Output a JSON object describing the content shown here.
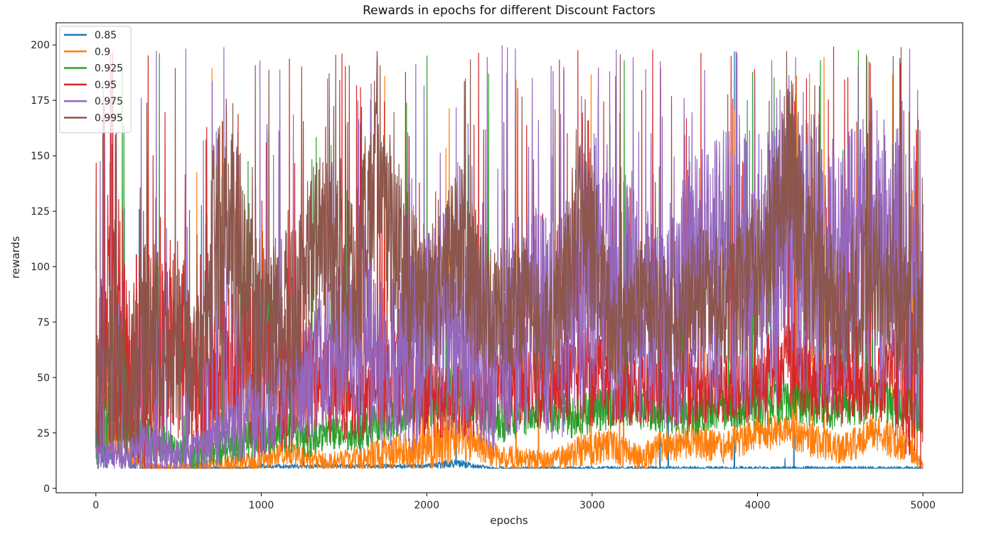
{
  "chart_data": {
    "type": "line",
    "title": "Rewards in epochs for different Discount Factors",
    "xlabel": "epochs",
    "ylabel": "rewards",
    "xlim": [
      -240,
      5240
    ],
    "ylim": [
      -2,
      210
    ],
    "xticks": [
      0,
      1000,
      2000,
      3000,
      4000,
      5000
    ],
    "yticks": [
      0,
      25,
      50,
      75,
      100,
      125,
      150,
      175,
      200
    ],
    "grid": false,
    "legend_position": "top-left",
    "x_sampled": [
      0,
      100,
      200,
      300,
      400,
      500,
      600,
      700,
      800,
      900,
      1000,
      1100,
      1200,
      1300,
      1400,
      1500,
      1600,
      1700,
      1800,
      1900,
      2000,
      2100,
      2200,
      2300,
      2400,
      2500,
      2600,
      2700,
      2800,
      2900,
      3000,
      3100,
      3200,
      3300,
      3400,
      3500,
      3600,
      3700,
      3800,
      3900,
      4000,
      4100,
      4200,
      4300,
      4400,
      4500,
      4600,
      4700,
      4800,
      4900,
      5000
    ],
    "series": [
      {
        "name": "0.85",
        "color": "#1f77b4",
        "center": [
          20,
          35,
          12,
          10,
          9,
          9,
          9,
          9,
          9,
          9,
          10,
          10,
          10,
          10,
          10,
          10,
          10,
          10,
          10,
          10,
          10,
          11,
          11,
          10,
          9,
          9,
          9,
          9,
          9,
          9,
          9,
          9,
          9,
          9,
          9,
          9,
          9,
          9,
          9,
          9,
          9,
          9,
          9,
          9,
          9,
          9,
          9,
          9,
          9,
          9,
          9
        ],
        "spread": [
          15,
          25,
          4,
          2,
          1,
          1,
          1,
          1,
          1,
          1,
          1,
          1,
          1,
          1,
          1,
          1,
          1,
          1,
          1,
          1,
          1,
          2,
          2,
          1,
          1,
          1,
          1,
          1,
          1,
          1,
          1,
          1,
          1,
          1,
          1,
          1,
          1,
          1,
          1,
          1,
          1,
          1,
          1,
          1,
          1,
          1,
          1,
          1,
          1,
          1,
          1
        ],
        "spike_rate": 0.005
      },
      {
        "name": "0.9",
        "color": "#ff7f0e",
        "center": [
          25,
          30,
          15,
          10,
          9,
          9,
          10,
          10,
          11,
          12,
          12,
          16,
          15,
          13,
          12,
          13,
          14,
          15,
          16,
          17,
          18,
          22,
          24,
          22,
          15,
          14,
          13,
          12,
          13,
          16,
          18,
          20,
          16,
          14,
          18,
          20,
          22,
          20,
          18,
          22,
          26,
          26,
          24,
          22,
          20,
          18,
          20,
          26,
          22,
          20,
          10
        ],
        "spread": [
          10,
          15,
          5,
          2,
          2,
          2,
          2,
          3,
          4,
          5,
          5,
          6,
          6,
          5,
          4,
          5,
          6,
          7,
          8,
          9,
          10,
          12,
          12,
          10,
          6,
          6,
          5,
          5,
          6,
          7,
          8,
          8,
          7,
          6,
          7,
          8,
          8,
          8,
          7,
          8,
          9,
          9,
          8,
          8,
          8,
          7,
          8,
          9,
          8,
          8,
          2
        ],
        "spike_rate": 0.02
      },
      {
        "name": "0.925",
        "color": "#2ca02c",
        "center": [
          20,
          40,
          22,
          25,
          20,
          16,
          14,
          16,
          20,
          22,
          24,
          26,
          24,
          22,
          27,
          25,
          26,
          30,
          32,
          35,
          38,
          42,
          45,
          40,
          32,
          30,
          35,
          38,
          34,
          32,
          35,
          36,
          38,
          36,
          35,
          34,
          33,
          36,
          35,
          37,
          38,
          38,
          40,
          38,
          37,
          36,
          38,
          40,
          38,
          37,
          32
        ],
        "spread": [
          10,
          20,
          10,
          12,
          9,
          6,
          6,
          7,
          8,
          10,
          10,
          10,
          9,
          8,
          9,
          8,
          9,
          10,
          10,
          11,
          12,
          13,
          13,
          12,
          10,
          10,
          11,
          11,
          10,
          10,
          10,
          10,
          10,
          10,
          10,
          10,
          10,
          10,
          10,
          10,
          10,
          10,
          10,
          10,
          10,
          10,
          10,
          10,
          10,
          10,
          8
        ],
        "spike_rate": 0.03
      },
      {
        "name": "0.95",
        "color": "#d62728",
        "center": [
          40,
          100,
          60,
          55,
          60,
          70,
          45,
          45,
          55,
          60,
          50,
          45,
          50,
          50,
          45,
          42,
          40,
          45,
          50,
          45,
          40,
          38,
          40,
          38,
          45,
          45,
          48,
          45,
          45,
          50,
          52,
          48,
          46,
          45,
          45,
          44,
          46,
          45,
          45,
          45,
          45,
          55,
          58,
          50,
          45,
          45,
          45,
          45,
          48,
          55,
          60
        ],
        "spread": [
          30,
          80,
          40,
          60,
          45,
          55,
          30,
          30,
          35,
          40,
          35,
          30,
          30,
          30,
          25,
          20,
          18,
          20,
          22,
          20,
          18,
          16,
          18,
          16,
          18,
          18,
          20,
          18,
          18,
          22,
          24,
          20,
          18,
          16,
          16,
          16,
          18,
          16,
          16,
          16,
          16,
          20,
          22,
          18,
          16,
          16,
          16,
          18,
          20,
          40,
          60
        ],
        "spike_rate": 0.06
      },
      {
        "name": "0.975",
        "color": "#9467bd",
        "center": [
          15,
          15,
          15,
          20,
          18,
          15,
          18,
          20,
          25,
          30,
          35,
          40,
          45,
          50,
          60,
          65,
          60,
          60,
          55,
          60,
          70,
          75,
          70,
          65,
          60,
          70,
          80,
          75,
          70,
          90,
          100,
          90,
          85,
          80,
          75,
          80,
          90,
          95,
          100,
          100,
          95,
          100,
          110,
          105,
          100,
          95,
          100,
          110,
          100,
          95,
          80
        ],
        "spread": [
          6,
          8,
          8,
          12,
          10,
          8,
          10,
          12,
          15,
          20,
          22,
          25,
          25,
          28,
          35,
          40,
          40,
          40,
          40,
          45,
          50,
          50,
          50,
          45,
          45,
          50,
          55,
          50,
          50,
          60,
          65,
          60,
          55,
          50,
          50,
          55,
          60,
          60,
          65,
          65,
          65,
          65,
          65,
          65,
          65,
          65,
          65,
          65,
          65,
          65,
          55
        ],
        "spike_rate": 0.08
      },
      {
        "name": "0.995",
        "color": "#8c564b",
        "center": [
          40,
          60,
          40,
          80,
          60,
          70,
          50,
          100,
          130,
          90,
          70,
          75,
          80,
          100,
          120,
          90,
          100,
          150,
          110,
          90,
          80,
          100,
          110,
          90,
          80,
          80,
          85,
          70,
          80,
          120,
          110,
          80,
          70,
          90,
          80,
          70,
          85,
          90,
          85,
          90,
          100,
          110,
          150,
          100,
          90,
          80,
          90,
          100,
          90,
          80,
          70
        ],
        "spread": [
          25,
          45,
          25,
          55,
          35,
          45,
          30,
          50,
          60,
          50,
          40,
          40,
          40,
          45,
          45,
          40,
          40,
          50,
          45,
          40,
          35,
          40,
          40,
          35,
          30,
          30,
          30,
          25,
          30,
          45,
          40,
          30,
          25,
          30,
          30,
          25,
          30,
          30,
          30,
          35,
          35,
          40,
          50,
          40,
          35,
          30,
          35,
          40,
          35,
          30,
          25
        ],
        "spike_rate": 0.04
      }
    ]
  }
}
